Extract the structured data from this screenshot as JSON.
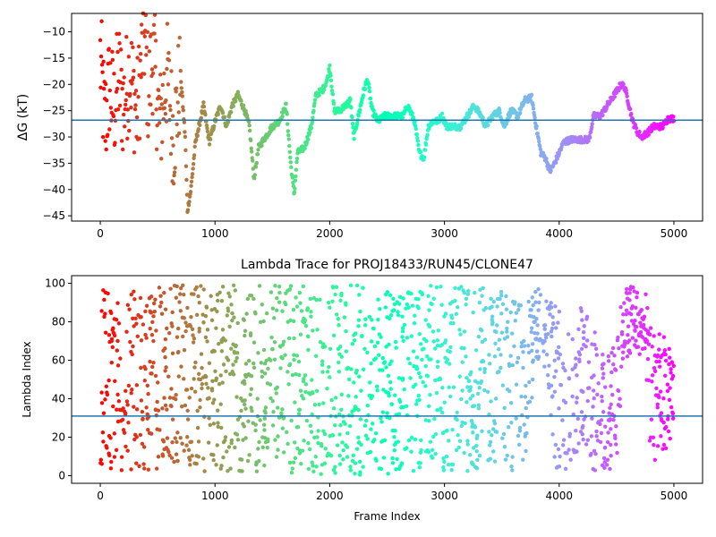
{
  "chart_data": [
    {
      "type": "scatter",
      "title": "",
      "xlabel": "",
      "ylabel": "ΔG (kT)",
      "xlim": [
        -250,
        5250
      ],
      "ylim": [
        -46,
        -6.5
      ],
      "xticks": [
        0,
        1000,
        2000,
        3000,
        4000,
        5000
      ],
      "yticks": [
        -45,
        -40,
        -35,
        -30,
        -25,
        -20,
        -15,
        -10
      ],
      "hline": -26.8,
      "hline_color": "#1f77b4",
      "colormap": "rainbow",
      "grid": false,
      "legend": "none",
      "trace_keypoints": [
        [
          0,
          -15
        ],
        [
          40,
          -28
        ],
        [
          80,
          -20
        ],
        [
          120,
          -25
        ],
        [
          160,
          -18
        ],
        [
          200,
          -24
        ],
        [
          260,
          -17
        ],
        [
          320,
          -26
        ],
        [
          380,
          -10
        ],
        [
          420,
          -22
        ],
        [
          460,
          -14
        ],
        [
          520,
          -28
        ],
        [
          580,
          -18
        ],
        [
          640,
          -30
        ],
        [
          700,
          -18
        ],
        [
          740,
          -30
        ],
        [
          760,
          -44
        ],
        [
          790,
          -40
        ],
        [
          830,
          -31
        ],
        [
          900,
          -24
        ],
        [
          950,
          -31
        ],
        [
          1000,
          -27
        ],
        [
          1050,
          -24
        ],
        [
          1100,
          -28
        ],
        [
          1150,
          -24
        ],
        [
          1200,
          -22
        ],
        [
          1260,
          -25
        ],
        [
          1300,
          -28
        ],
        [
          1340,
          -38
        ],
        [
          1380,
          -32
        ],
        [
          1440,
          -30
        ],
        [
          1500,
          -28
        ],
        [
          1560,
          -27
        ],
        [
          1620,
          -24
        ],
        [
          1660,
          -35
        ],
        [
          1690,
          -41
        ],
        [
          1720,
          -33
        ],
        [
          1780,
          -32
        ],
        [
          1840,
          -28
        ],
        [
          1880,
          -22
        ],
        [
          1940,
          -21
        ],
        [
          1980,
          -19
        ],
        [
          2000,
          -16.5
        ],
        [
          2040,
          -25
        ],
        [
          2080,
          -25
        ],
        [
          2140,
          -24
        ],
        [
          2180,
          -23
        ],
        [
          2210,
          -30
        ],
        [
          2250,
          -26
        ],
        [
          2300,
          -21
        ],
        [
          2330,
          -19
        ],
        [
          2370,
          -25
        ],
        [
          2420,
          -27
        ],
        [
          2480,
          -26
        ],
        [
          2560,
          -26
        ],
        [
          2640,
          -26
        ],
        [
          2680,
          -24
        ],
        [
          2740,
          -27
        ],
        [
          2780,
          -33
        ],
        [
          2820,
          -34
        ],
        [
          2860,
          -28
        ],
        [
          2900,
          -27
        ],
        [
          2940,
          -27
        ],
        [
          2980,
          -26
        ],
        [
          3020,
          -28
        ],
        [
          3080,
          -28
        ],
        [
          3140,
          -28
        ],
        [
          3200,
          -26
        ],
        [
          3260,
          -24
        ],
        [
          3320,
          -26
        ],
        [
          3360,
          -28
        ],
        [
          3420,
          -26
        ],
        [
          3480,
          -25
        ],
        [
          3520,
          -28
        ],
        [
          3580,
          -25
        ],
        [
          3640,
          -26
        ],
        [
          3700,
          -23
        ],
        [
          3760,
          -22.5
        ],
        [
          3800,
          -28
        ],
        [
          3840,
          -33
        ],
        [
          3880,
          -34
        ],
        [
          3920,
          -36.5
        ],
        [
          3960,
          -35
        ],
        [
          4000,
          -33
        ],
        [
          4040,
          -31
        ],
        [
          4100,
          -30.5
        ],
        [
          4200,
          -30.5
        ],
        [
          4260,
          -30.5
        ],
        [
          4300,
          -26
        ],
        [
          4360,
          -26
        ],
        [
          4420,
          -24
        ],
        [
          4480,
          -22
        ],
        [
          4540,
          -20
        ],
        [
          4570,
          -20.5
        ],
        [
          4600,
          -23
        ],
        [
          4640,
          -27
        ],
        [
          4680,
          -29
        ],
        [
          4720,
          -30
        ],
        [
          4780,
          -29
        ],
        [
          4820,
          -28
        ],
        [
          4900,
          -28
        ],
        [
          4950,
          -26.5
        ],
        [
          5000,
          -26.5
        ]
      ]
    },
    {
      "type": "scatter",
      "title": "Lambda Trace for PROJ18433/RUN45/CLONE47",
      "xlabel": "Frame Index",
      "ylabel": "Lambda Index",
      "xlim": [
        -250,
        5250
      ],
      "ylim": [
        -4,
        104
      ],
      "xticks": [
        0,
        1000,
        2000,
        3000,
        4000,
        5000
      ],
      "yticks": [
        0,
        20,
        40,
        60,
        80,
        100
      ],
      "hline": 31,
      "hline_color": "#1f77b4",
      "colormap": "rainbow",
      "grid": false,
      "legend": "none",
      "band_keypoints": [
        [
          0,
          5,
          98
        ],
        [
          200,
          2,
          99
        ],
        [
          600,
          2,
          99
        ],
        [
          1000,
          2,
          99
        ],
        [
          1400,
          2,
          99
        ],
        [
          1800,
          1,
          99
        ],
        [
          2200,
          0,
          99
        ],
        [
          2600,
          0,
          99
        ],
        [
          3000,
          2,
          99
        ],
        [
          3400,
          2,
          98
        ],
        [
          3600,
          2,
          96
        ],
        [
          3700,
          5,
          90
        ],
        [
          3800,
          60,
          99
        ],
        [
          3900,
          50,
          99
        ],
        [
          3950,
          2,
          90
        ],
        [
          4100,
          2,
          80
        ],
        [
          4200,
          20,
          92
        ],
        [
          4300,
          2,
          80
        ],
        [
          4400,
          2,
          60
        ],
        [
          4500,
          2,
          70
        ],
        [
          4560,
          60,
          99
        ],
        [
          4650,
          65,
          99
        ],
        [
          4750,
          50,
          95
        ],
        [
          4800,
          5,
          80
        ],
        [
          4900,
          10,
          75
        ],
        [
          5000,
          20,
          60
        ]
      ]
    }
  ]
}
